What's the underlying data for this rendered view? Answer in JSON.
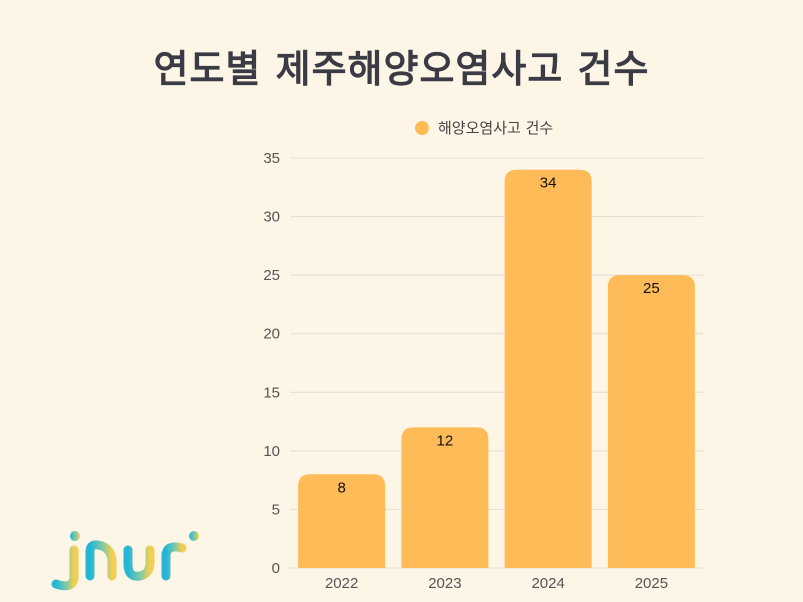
{
  "title": "연도별 제주해양오염사고 건수",
  "colors": {
    "bar": "#ffbb57",
    "grid": "#e2ddd4",
    "background": "#fdf5e6"
  },
  "chart_data": {
    "type": "bar",
    "categories": [
      "2022",
      "2023",
      "2024",
      "2025"
    ],
    "series": [
      {
        "name": "해양오염사고 건수",
        "values": [
          8,
          12,
          34,
          25
        ]
      }
    ],
    "ylim": [
      0,
      35
    ],
    "yticks": [
      0,
      5,
      10,
      15,
      20,
      25,
      30,
      35
    ],
    "grid": true,
    "legend_position": "top"
  },
  "logo": {
    "text": "jnuri"
  }
}
